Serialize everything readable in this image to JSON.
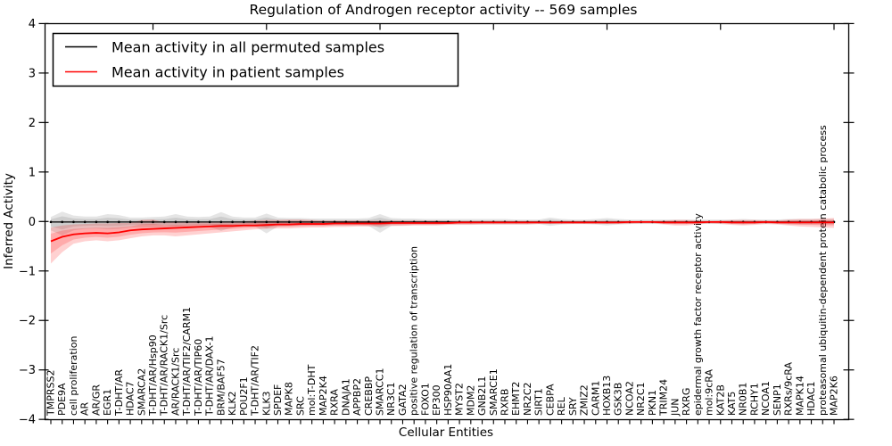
{
  "figure": {
    "title": "Regulation of Androgen receptor activity -- 569 samples",
    "xlabel": "Cellular Entities",
    "ylabel": "Inferred Activity",
    "legend": [
      {
        "label": "Mean activity in all permuted samples",
        "color": "#000000"
      },
      {
        "label": "Mean activity in patient samples",
        "color": "#ff0000"
      }
    ]
  },
  "chart_data": {
    "type": "line",
    "title": "Regulation of Androgen receptor activity -- 569 samples",
    "xlabel": "Cellular Entities",
    "ylabel": "Inferred Activity",
    "ylim": [
      -4,
      4
    ],
    "yticks": [
      -4,
      -3,
      -2,
      -1,
      0,
      1,
      2,
      3,
      4
    ],
    "grid": false,
    "legend_position": "upper left",
    "sample_count_in_title": 569,
    "categories": [
      "TMPRSS2",
      "PDE9A",
      "cell proliferation",
      "AR",
      "AR/GR",
      "EGR1",
      "T-DHT/AR",
      "HDAC7",
      "SMARCA2",
      "T-DHT/AR/Hsp90",
      "T-DHT/AR/RACK1/Src",
      "AR/RACK1/Src",
      "T-DHT/AR/TIF2/CARM1",
      "T-DHT/AR/TIP60",
      "T-DHT/AR/DAX-1",
      "BRM/BAF57",
      "KLK2",
      "POU2F1",
      "T-DHT/AR/TIF2",
      "KLK3",
      "SPDEF",
      "MAPK8",
      "SRC",
      "mol:T-DHT",
      "MAP2K4",
      "RXRA",
      "DNAJA1",
      "APPBP2",
      "CREBBP",
      "SMARCC1",
      "NR3C1",
      "GATA2",
      "positive regulation of transcription",
      "FOXO1",
      "EP300",
      "HSP90AA1",
      "MYST2",
      "MDM2",
      "GNB2L1",
      "SMARCE1",
      "RXRB",
      "EHMT2",
      "NR2C2",
      "SIRT1",
      "CEBPA",
      "REL",
      "SRY",
      "ZMIZ2",
      "CARM1",
      "HOXB13",
      "GSK3B",
      "NCOA2",
      "NR2C1",
      "PKN1",
      "TRIM24",
      "JUN",
      "RXRG",
      "epidermal growth factor receptor activity",
      "mol:9cRA",
      "KAT2B",
      "KAT5",
      "NR0B1",
      "RCHY1",
      "NCOA1",
      "SENP1",
      "RXRs/9cRA",
      "MAPK14",
      "HDAC1",
      "proteasomal ubiquitin-dependent protein catabolic process",
      "MAP2K6"
    ],
    "series": [
      {
        "name": "Mean activity in all permuted samples",
        "color": "#000000",
        "band_color": "rgba(0,0,0,0.10)",
        "marker": "dot",
        "values": [
          -0.01,
          -0.01,
          -0.01,
          -0.01,
          -0.01,
          -0.01,
          -0.01,
          -0.01,
          -0.01,
          -0.01,
          -0.01,
          -0.01,
          -0.01,
          -0.01,
          -0.01,
          -0.01,
          -0.01,
          -0.01,
          -0.01,
          -0.01,
          -0.01,
          -0.01,
          -0.01,
          -0.01,
          -0.01,
          -0.01,
          -0.01,
          -0.01,
          -0.01,
          -0.01,
          -0.01,
          -0.01,
          -0.01,
          -0.01,
          -0.01,
          -0.01,
          -0.01,
          -0.01,
          -0.01,
          -0.01,
          -0.01,
          -0.01,
          -0.01,
          -0.01,
          -0.01,
          -0.01,
          -0.01,
          -0.01,
          -0.01,
          -0.01,
          -0.01,
          -0.01,
          -0.01,
          -0.01,
          -0.01,
          -0.01,
          -0.01,
          -0.01,
          -0.01,
          -0.01,
          -0.01,
          -0.01,
          -0.01,
          -0.01,
          -0.01,
          -0.01,
          -0.01,
          -0.01,
          -0.01,
          -0.01
        ],
        "band_upper": [
          0.09,
          0.2,
          0.12,
          0.1,
          0.1,
          0.15,
          0.13,
          0.08,
          0.08,
          0.09,
          0.1,
          0.15,
          0.1,
          0.09,
          0.1,
          0.19,
          0.1,
          0.08,
          0.08,
          0.16,
          0.08,
          0.07,
          0.07,
          0.06,
          0.06,
          0.06,
          0.06,
          0.06,
          0.07,
          0.15,
          0.07,
          0.06,
          0.06,
          0.05,
          0.05,
          0.05,
          0.05,
          0.05,
          0.05,
          0.05,
          0.05,
          0.04,
          0.04,
          0.04,
          0.08,
          0.05,
          0.04,
          0.04,
          0.05,
          0.07,
          0.05,
          0.04,
          0.04,
          0.04,
          0.04,
          0.04,
          0.04,
          0.04,
          0.04,
          0.04,
          0.04,
          0.05,
          0.04,
          0.04,
          0.04,
          0.05,
          0.05,
          0.05,
          0.05,
          0.05
        ],
        "band_lower": [
          -0.18,
          -0.28,
          -0.18,
          -0.15,
          -0.14,
          -0.16,
          -0.15,
          -0.12,
          -0.12,
          -0.12,
          -0.12,
          -0.15,
          -0.12,
          -0.11,
          -0.11,
          -0.19,
          -0.12,
          -0.1,
          -0.1,
          -0.24,
          -0.1,
          -0.09,
          -0.09,
          -0.08,
          -0.08,
          -0.08,
          -0.08,
          -0.08,
          -0.09,
          -0.23,
          -0.09,
          -0.08,
          -0.07,
          -0.07,
          -0.07,
          -0.06,
          -0.06,
          -0.06,
          -0.06,
          -0.06,
          -0.06,
          -0.06,
          -0.06,
          -0.05,
          -0.09,
          -0.06,
          -0.05,
          -0.05,
          -0.06,
          -0.08,
          -0.06,
          -0.05,
          -0.05,
          -0.05,
          -0.05,
          -0.05,
          -0.05,
          -0.05,
          -0.05,
          -0.05,
          -0.05,
          -0.06,
          -0.05,
          -0.05,
          -0.05,
          -0.06,
          -0.06,
          -0.06,
          -0.06,
          -0.06
        ]
      },
      {
        "name": "Mean activity in patient samples",
        "color": "#ff0000",
        "band_color": "rgba(255,0,0,0.18)",
        "marker": "none",
        "values": [
          -0.4,
          -0.31,
          -0.26,
          -0.24,
          -0.23,
          -0.24,
          -0.22,
          -0.18,
          -0.16,
          -0.15,
          -0.14,
          -0.13,
          -0.12,
          -0.11,
          -0.1,
          -0.09,
          -0.09,
          -0.08,
          -0.08,
          -0.07,
          -0.06,
          -0.06,
          -0.05,
          -0.05,
          -0.05,
          -0.04,
          -0.04,
          -0.04,
          -0.04,
          -0.04,
          -0.03,
          -0.03,
          -0.03,
          -0.03,
          -0.03,
          -0.03,
          -0.02,
          -0.02,
          -0.02,
          -0.02,
          -0.02,
          -0.02,
          -0.02,
          -0.02,
          -0.02,
          -0.02,
          -0.02,
          -0.02,
          -0.02,
          -0.02,
          -0.02,
          -0.01,
          -0.01,
          -0.01,
          -0.02,
          -0.02,
          -0.02,
          -0.02,
          -0.01,
          -0.01,
          -0.02,
          -0.02,
          -0.02,
          -0.01,
          -0.02,
          -0.02,
          -0.02,
          -0.02,
          -0.02,
          -0.02
        ],
        "band_upper": [
          -0.12,
          -0.08,
          -0.06,
          -0.05,
          -0.04,
          -0.04,
          -0.03,
          -0.03,
          0.03,
          0.04,
          -0.02,
          -0.02,
          -0.02,
          -0.01,
          -0.01,
          -0.01,
          -0.01,
          0.0,
          0.02,
          0.03,
          0.03,
          0.04,
          0.04,
          0.03,
          0.02,
          0.02,
          0.02,
          0.02,
          0.02,
          0.02,
          0.02,
          0.02,
          0.02,
          0.02,
          0.02,
          0.01,
          0.01,
          0.01,
          0.01,
          0.01,
          0.01,
          0.01,
          0.01,
          0.01,
          0.01,
          0.01,
          0.01,
          0.01,
          0.01,
          0.01,
          0.01,
          0.01,
          0.01,
          0.01,
          0.02,
          0.03,
          0.03,
          0.02,
          0.01,
          0.02,
          0.03,
          0.03,
          0.03,
          0.02,
          0.02,
          0.04,
          0.05,
          0.05,
          0.06,
          0.07
        ],
        "band_lower": [
          -0.85,
          -0.62,
          -0.45,
          -0.4,
          -0.38,
          -0.4,
          -0.38,
          -0.34,
          -0.3,
          -0.28,
          -0.28,
          -0.3,
          -0.28,
          -0.26,
          -0.24,
          -0.22,
          -0.2,
          -0.18,
          -0.16,
          -0.15,
          -0.14,
          -0.14,
          -0.13,
          -0.12,
          -0.12,
          -0.11,
          -0.11,
          -0.1,
          -0.1,
          -0.1,
          -0.09,
          -0.09,
          -0.08,
          -0.08,
          -0.08,
          -0.07,
          -0.07,
          -0.07,
          -0.06,
          -0.06,
          -0.06,
          -0.06,
          -0.06,
          -0.05,
          -0.05,
          -0.05,
          -0.05,
          -0.05,
          -0.05,
          -0.05,
          -0.05,
          -0.05,
          -0.04,
          -0.04,
          -0.06,
          -0.08,
          -0.08,
          -0.06,
          -0.04,
          -0.05,
          -0.07,
          -0.08,
          -0.07,
          -0.05,
          -0.06,
          -0.08,
          -0.1,
          -0.11,
          -0.12,
          -0.13
        ]
      }
    ]
  }
}
